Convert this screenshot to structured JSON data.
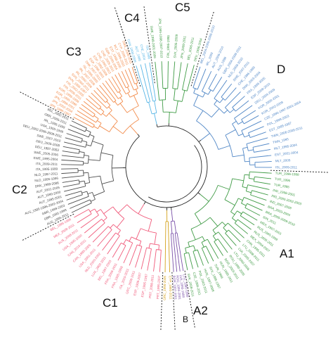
{
  "figure": {
    "clades": [
      {
        "key": "C4",
        "label": "C4"
      },
      {
        "key": "C5",
        "label": "C5"
      },
      {
        "key": "C3",
        "label": "C3"
      },
      {
        "key": "D",
        "label": "D"
      },
      {
        "key": "C2",
        "label": "C2"
      },
      {
        "key": "A1",
        "label": "A1"
      },
      {
        "key": "C1",
        "label": "C1"
      },
      {
        "key": "A2",
        "label": "A2"
      },
      {
        "key": "B",
        "label": "B"
      }
    ],
    "colors": {
      "D": "#4f86c6",
      "A1": "#3f9b45",
      "C5": "#3f9b45",
      "C4": "#58b6e6",
      "C3": "#f28c4c",
      "C2": "#4d4d4d",
      "C1": "#f05a7a",
      "A2": "#7b52a9",
      "B": "#d4a21c",
      "root": "#222222"
    },
    "leaf_groups": {
      "C5": [
        "SWE_1999-2001-2006",
        "JPN_1995-1998-2007-2010",
        "FIN_1995-1998",
        "SVK_2005-2009",
        "JPN_2009-2011",
        "BEL_2006-2011",
        "DEU_1996-2004"
      ],
      "C4": [
        "CAN_2006-2009",
        "AUT_1998",
        "CHE_2004",
        "ITA_1996"
      ],
      "D": [
        "BEL_2004-2005-2006-2010",
        "IRL_2009",
        "AUT_2006-2010",
        "AUS_1998",
        "GBR_2004-2009-2011",
        "NLD_2008-2010",
        "SWE_2007-2011",
        "CHE_1996-1999",
        "DNK_2003-2004",
        "FRA_1999-2005",
        "ESP_2008-2010",
        "DEU_2004-2009",
        "KOR_2000-2001",
        "KOR_2002-2009",
        "CZE_1995-1997-2001-2004",
        "POL_1999-2003",
        "EST_1995-1997",
        "TWN_2006-2009-2011",
        "TWN_1995",
        "MLT_1995-2004",
        "EST_2001-2004",
        "MLT_2005",
        "ISL_2009-2011"
      ],
      "A1": [
        "TUR_1996-1998",
        "TUR_1996",
        "TUR_1995",
        "IND_1998-2001",
        "IND_2000-2002-2003",
        "IND_2007-2009",
        "BRA_2003-2004",
        "BRA_2005-2009-2010",
        "IDN_2011",
        "MEX_1997-2001",
        "RUS_1995-1999",
        "RUS_2005-2011",
        "MEX_2004-2007",
        "CHN_1995-2011",
        "LTU_2008-2011",
        "LVA_2005-2007",
        "LTU_2000-2006",
        "ROU_1995-2005",
        "BGR_2003-2011",
        "HUN_1995-2011",
        "SVN_1999",
        "SVK_1995-1997",
        "HUN_1997-2008",
        "POL_2003-2011",
        "CZE_1995-2011",
        "SVK_2008-2011"
      ],
      "A2": [
        "LTU_1995-1999",
        "LVA_1995-1998",
        "ROU_1996-2001",
        "BGR_1997-2001"
      ],
      "B": [
        "CYP_1995-2011",
        "GRC_1995-2005"
      ],
      "C1": [
        "PRT_1995-2007",
        "PRT_2008-2011",
        "ESP_1995-1997",
        "ESP_1998-2007",
        "GRC_2006-2011",
        "ITA_2010-2011",
        "FRA_1995-1998",
        "FRA_2006-2011",
        "BEL_1997-2003",
        "LUX_2002-2011",
        "NLD_2000-2002",
        "USA_2001-2011",
        "CAN_1995-2005",
        "CAN_2010-2011",
        "USA_1995-2000",
        "AUS_2008-2011",
        "MEX_2008-2011",
        "BEL_1995-1996"
      ],
      "C2": [
        "AUS_1995-2011",
        "GBR_1995-1999",
        "GBR_1999-2003",
        "AUS_1995-1996-2002-2004",
        "AUT_1995-2001",
        "AUT_1999-2000",
        "AUT_2001-2005",
        "DNK_1999-2006",
        "NLD_1995-1996",
        "NLD_1997-2011",
        "ITA_1995-1999",
        "ITA_2009-2011",
        "SWE_1995-2004",
        "SWE_2005-2006",
        "DEU_1997-2003",
        "DEU_2005-2008",
        "SWE_2007-2010",
        "DEU_2002-2006-2008-2011",
        "USA_1995-1999",
        "IRL_1995-1999",
        "GBR_2005-2011",
        "BEL_2002-2011"
      ],
      "C3": [
        "JPN_1996-1997",
        "JPN_2002-2004",
        "JPN_1999-2001",
        "KOR_1995-1998",
        "KOR_1995-1996",
        "FIN_2006-2011",
        "FIN_2002-2005",
        "SVN_1995-1997",
        "SVN_2000-2011",
        "IRL_2000-2006",
        "IRL_2007-2008",
        "ISL_1995-2005",
        "DNK_2007-2011",
        "ESP_1995-2001",
        "ESP_2002-2006",
        "CHE_1995-2003",
        "CHE_2005-2011",
        "GBR_2000-2004",
        "EST_1998-2000",
        "MLT_1998-2003",
        "CYP_2006-2011",
        "SWE_2008-2011"
      ]
    }
  }
}
